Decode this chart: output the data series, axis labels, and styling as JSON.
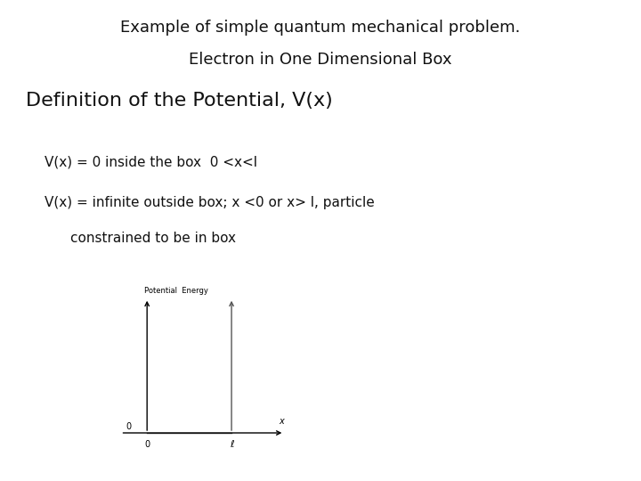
{
  "header_text_line1": "Example of simple quantum mechanical problem.",
  "header_text_line2": "Electron in One Dimensional Box",
  "header_bg_color": "#F5C200",
  "header_text_color": "#111111",
  "body_bg_color": "#ffffff",
  "title_text": "Definition of the Potential, V(x)",
  "bullet1": "V(x) = 0 inside the box  0 <x<l",
  "bullet2": "V(x) = infinite outside box; x <0 or x> l, particle",
  "bullet3": "constrained to be in box",
  "plot_ylabel": "Potential  Energy",
  "plot_xlabel": "x",
  "plot_x0_label": "0",
  "plot_xl_label": "ℓ",
  "plot_y0_label": "0",
  "title_fontsize": 16,
  "bullet_fontsize": 11,
  "header_fontsize": 13
}
